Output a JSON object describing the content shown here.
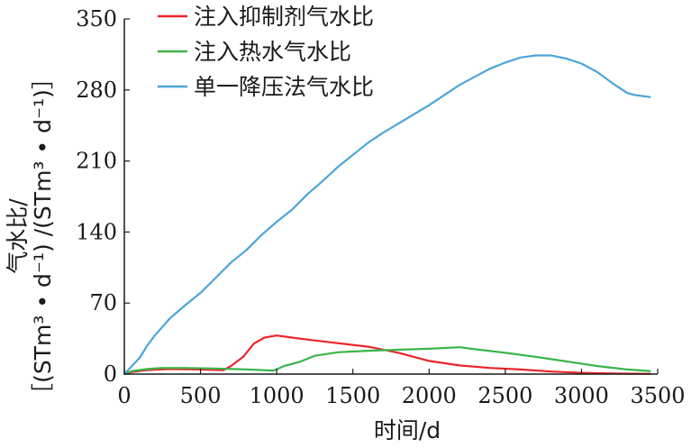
{
  "chart_data": {
    "type": "line",
    "xlabel": "时间/d",
    "ylabel_line1": "气水比/",
    "ylabel_line2": "［(STm³ • d⁻¹) /(STm³ • d⁻¹)］",
    "xlim": [
      0,
      3500
    ],
    "ylim": [
      0,
      350
    ],
    "xticks": [
      0,
      500,
      1000,
      1500,
      2000,
      2500,
      3000,
      3500
    ],
    "yticks": [
      0,
      70,
      140,
      210,
      280,
      350
    ],
    "grid": false,
    "legend_position": "top-left",
    "series": [
      {
        "name": "注入抑制剂气水比",
        "color": "#e8262b",
        "points": [
          [
            0,
            0
          ],
          [
            50,
            2
          ],
          [
            150,
            4
          ],
          [
            300,
            5
          ],
          [
            500,
            4.5
          ],
          [
            650,
            3.8
          ],
          [
            700,
            8
          ],
          [
            780,
            17
          ],
          [
            850,
            30
          ],
          [
            920,
            36
          ],
          [
            1000,
            38
          ],
          [
            1100,
            36
          ],
          [
            1200,
            34
          ],
          [
            1400,
            30.5
          ],
          [
            1600,
            27
          ],
          [
            1800,
            21
          ],
          [
            2000,
            13
          ],
          [
            2200,
            8.5
          ],
          [
            2400,
            6
          ],
          [
            2600,
            4.5
          ],
          [
            2800,
            2.5
          ],
          [
            3000,
            1.2
          ],
          [
            3200,
            0.5
          ],
          [
            3450,
            0.3
          ]
        ]
      },
      {
        "name": "注入热水气水比",
        "color": "#3db54a",
        "points": [
          [
            0,
            0
          ],
          [
            50,
            3
          ],
          [
            150,
            5
          ],
          [
            250,
            6
          ],
          [
            400,
            6
          ],
          [
            600,
            5.5
          ],
          [
            800,
            4.5
          ],
          [
            980,
            3.5
          ],
          [
            1050,
            8
          ],
          [
            1150,
            12
          ],
          [
            1250,
            18
          ],
          [
            1400,
            21.5
          ],
          [
            1600,
            23
          ],
          [
            1800,
            24
          ],
          [
            2000,
            25
          ],
          [
            2200,
            26.5
          ],
          [
            2300,
            24.5
          ],
          [
            2500,
            21
          ],
          [
            2700,
            17
          ],
          [
            2900,
            12.5
          ],
          [
            3100,
            8
          ],
          [
            3300,
            4.5
          ],
          [
            3450,
            3
          ]
        ]
      },
      {
        "name": "单一降压法气水比",
        "color": "#4aa6d9",
        "points": [
          [
            0,
            0
          ],
          [
            50,
            8
          ],
          [
            100,
            16
          ],
          [
            150,
            28
          ],
          [
            200,
            38
          ],
          [
            300,
            55
          ],
          [
            400,
            68
          ],
          [
            500,
            80
          ],
          [
            600,
            95
          ],
          [
            700,
            110
          ],
          [
            800,
            122
          ],
          [
            900,
            137
          ],
          [
            1000,
            150
          ],
          [
            1100,
            162
          ],
          [
            1200,
            177
          ],
          [
            1300,
            190
          ],
          [
            1400,
            204
          ],
          [
            1500,
            216
          ],
          [
            1600,
            228
          ],
          [
            1700,
            238
          ],
          [
            1800,
            247
          ],
          [
            1900,
            256
          ],
          [
            2000,
            265
          ],
          [
            2100,
            275
          ],
          [
            2200,
            285
          ],
          [
            2300,
            293
          ],
          [
            2400,
            301
          ],
          [
            2500,
            307
          ],
          [
            2600,
            312
          ],
          [
            2700,
            314
          ],
          [
            2800,
            314
          ],
          [
            2900,
            311
          ],
          [
            3000,
            306
          ],
          [
            3100,
            298
          ],
          [
            3200,
            287
          ],
          [
            3300,
            277
          ],
          [
            3350,
            275
          ],
          [
            3450,
            273
          ]
        ]
      }
    ]
  }
}
